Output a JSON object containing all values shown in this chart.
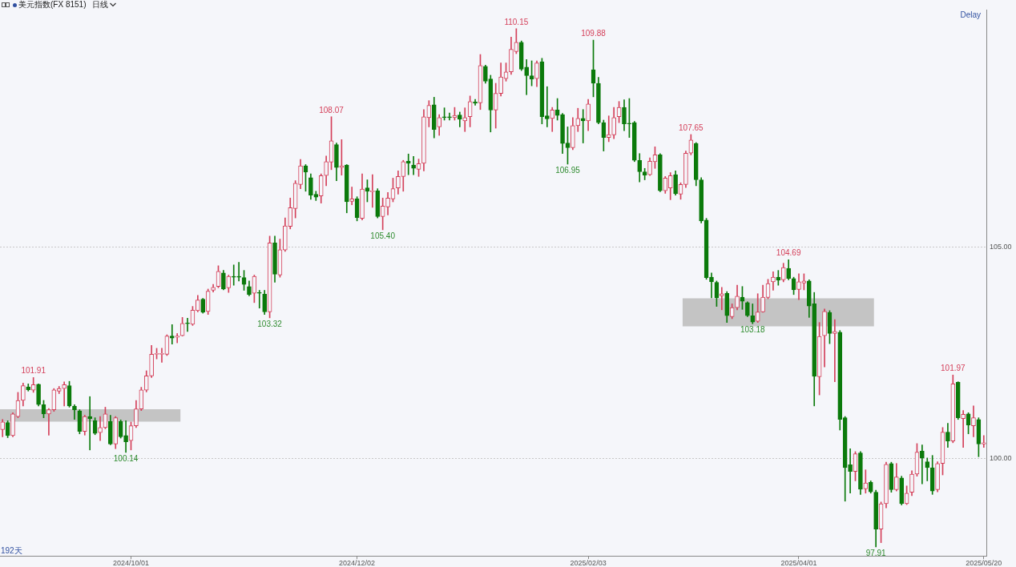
{
  "chart_data": {
    "type": "candlestick",
    "title": "美元指数(FX 8151)",
    "subtitle": "日线",
    "categories": [
      null,
      null,
      null,
      null,
      null,
      null,
      null,
      null,
      null,
      null,
      null,
      null,
      null,
      null,
      null,
      null,
      null,
      null,
      null,
      null,
      null,
      null,
      null,
      null,
      null,
      "2024/10/01",
      null,
      null,
      null,
      null,
      null,
      null,
      null,
      null,
      null,
      null,
      null,
      null,
      null,
      null,
      null,
      null,
      null,
      null,
      null,
      null,
      null,
      null,
      null,
      null,
      null,
      null,
      null,
      null,
      null,
      null,
      null,
      null,
      null,
      null,
      null,
      null,
      null,
      null,
      null,
      null,
      null,
      null,
      null,
      "2024/12/02",
      null,
      null,
      null,
      null,
      null,
      null,
      null,
      null,
      null,
      null,
      null,
      null,
      null,
      null,
      null,
      null,
      null,
      null,
      null,
      null,
      null,
      null,
      null,
      null,
      null,
      null,
      null,
      null,
      null,
      null,
      null,
      null,
      null,
      null,
      null,
      null,
      null,
      null,
      null,
      null,
      null,
      null,
      null,
      null,
      "2025/02/03",
      null,
      null,
      null,
      null,
      null,
      null,
      null,
      null,
      null,
      null,
      null,
      null,
      null,
      null,
      null,
      null,
      null,
      null,
      null,
      null,
      null,
      null,
      null,
      null,
      null,
      null,
      null,
      null,
      null,
      null,
      null,
      null,
      null,
      null,
      null,
      null,
      null,
      null,
      null,
      null,
      "2025/04/01",
      null,
      null,
      null,
      null,
      null,
      null,
      null,
      null,
      null,
      null,
      null,
      null,
      null,
      null,
      null,
      null,
      null,
      null,
      null,
      null,
      null,
      null,
      null,
      null,
      null,
      null,
      null,
      null,
      null,
      null,
      null,
      null,
      null,
      null,
      null,
      "2025/05/20"
    ],
    "ohlc": [
      [
        100.68,
        100.92,
        100.51,
        100.86
      ],
      [
        100.85,
        100.89,
        100.49,
        100.54
      ],
      [
        100.54,
        101.08,
        100.51,
        101.05
      ],
      [
        100.99,
        101.56,
        100.96,
        101.37
      ],
      [
        101.37,
        101.78,
        101.24,
        101.72
      ],
      [
        101.69,
        101.76,
        101.59,
        101.62
      ],
      [
        101.61,
        101.91,
        101.56,
        101.74
      ],
      [
        101.75,
        101.76,
        101.24,
        101.27
      ],
      [
        101.27,
        101.37,
        100.96,
        101.05
      ],
      [
        101.05,
        101.18,
        100.55,
        101.15
      ],
      [
        101.15,
        101.65,
        101.11,
        101.62
      ],
      [
        101.59,
        101.7,
        101.53,
        101.65
      ],
      [
        101.65,
        101.81,
        101.24,
        101.74
      ],
      [
        101.72,
        101.82,
        101.21,
        101.24
      ],
      [
        101.23,
        101.27,
        100.92,
        101.15
      ],
      [
        101.12,
        101.15,
        100.58,
        100.64
      ],
      [
        100.64,
        101.02,
        100.55,
        100.99
      ],
      [
        100.99,
        101.46,
        100.2,
        100.94
      ],
      [
        100.89,
        100.96,
        100.56,
        100.59
      ],
      [
        100.61,
        100.99,
        100.42,
        100.73
      ],
      [
        100.73,
        101.21,
        100.7,
        101.05
      ],
      [
        100.87,
        101.02,
        100.32,
        100.34
      ],
      [
        100.34,
        100.99,
        100.23,
        100.96
      ],
      [
        100.87,
        100.91,
        100.48,
        100.51
      ],
      [
        100.54,
        100.89,
        100.14,
        100.39
      ],
      [
        100.42,
        100.86,
        100.2,
        100.77
      ],
      [
        100.77,
        101.37,
        100.73,
        101.17
      ],
      [
        101.17,
        101.68,
        101.13,
        101.62
      ],
      [
        101.61,
        102.07,
        101.57,
        101.95
      ],
      [
        101.95,
        102.67,
        101.91,
        102.46
      ],
      [
        102.46,
        102.6,
        102.35,
        102.47
      ],
      [
        102.46,
        102.6,
        102.27,
        102.47
      ],
      [
        102.46,
        102.92,
        102.43,
        102.89
      ],
      [
        102.89,
        103.16,
        102.7,
        102.84
      ],
      [
        102.86,
        102.95,
        102.73,
        102.89
      ],
      [
        102.9,
        103.33,
        102.89,
        103.19
      ],
      [
        103.19,
        103.31,
        103.0,
        103.18
      ],
      [
        103.17,
        103.59,
        103.14,
        103.5
      ],
      [
        103.49,
        103.85,
        103.46,
        103.74
      ],
      [
        103.76,
        103.78,
        103.43,
        103.45
      ],
      [
        103.47,
        104.0,
        103.4,
        103.95
      ],
      [
        103.97,
        104.11,
        103.93,
        104.04
      ],
      [
        104.06,
        104.55,
        104.03,
        104.42
      ],
      [
        104.38,
        104.44,
        103.98,
        104.0
      ],
      [
        104.03,
        104.33,
        103.92,
        104.3
      ],
      [
        104.3,
        104.57,
        104.09,
        104.28
      ],
      [
        104.29,
        104.63,
        104.19,
        104.28
      ],
      [
        104.27,
        104.44,
        103.97,
        104.11
      ],
      [
        104.06,
        104.19,
        103.84,
        103.87
      ],
      [
        103.9,
        104.33,
        103.68,
        104.3
      ],
      [
        103.91,
        103.97,
        103.55,
        103.9
      ],
      [
        103.88,
        103.97,
        103.4,
        103.46
      ],
      [
        103.46,
        105.25,
        103.32,
        105.09
      ],
      [
        105.09,
        105.25,
        104.16,
        104.35
      ],
      [
        104.33,
        105.18,
        104.28,
        104.93
      ],
      [
        104.92,
        105.68,
        104.89,
        105.49
      ],
      [
        105.48,
        106.15,
        105.42,
        105.92
      ],
      [
        105.9,
        106.56,
        105.68,
        106.5
      ],
      [
        106.47,
        107.06,
        106.37,
        106.91
      ],
      [
        106.91,
        106.94,
        106.31,
        106.76
      ],
      [
        106.63,
        106.72,
        106.12,
        106.22
      ],
      [
        106.24,
        106.31,
        106.09,
        106.17
      ],
      [
        106.2,
        106.72,
        106.03,
        106.68
      ],
      [
        106.68,
        107.14,
        106.44,
        107.01
      ],
      [
        107.0,
        108.07,
        106.82,
        107.5
      ],
      [
        107.41,
        107.45,
        106.56,
        106.87
      ],
      [
        106.87,
        107.53,
        106.69,
        106.91
      ],
      [
        106.93,
        106.94,
        105.8,
        106.06
      ],
      [
        106.07,
        106.41,
        105.99,
        106.13
      ],
      [
        106.13,
        106.18,
        105.61,
        105.69
      ],
      [
        105.67,
        106.72,
        105.63,
        106.36
      ],
      [
        106.39,
        106.58,
        106.06,
        106.31
      ],
      [
        106.3,
        106.7,
        105.93,
        106.31
      ],
      [
        106.32,
        106.37,
        105.68,
        105.71
      ],
      [
        105.71,
        106.15,
        105.4,
        105.96
      ],
      [
        105.94,
        106.28,
        105.75,
        106.15
      ],
      [
        106.13,
        106.62,
        106.06,
        106.37
      ],
      [
        106.39,
        106.79,
        106.24,
        106.66
      ],
      [
        106.66,
        107.04,
        106.31,
        107.01
      ],
      [
        107.02,
        107.19,
        106.7,
        106.97
      ],
      [
        106.93,
        107.13,
        106.7,
        106.85
      ],
      [
        106.83,
        107.07,
        106.66,
        106.96
      ],
      [
        106.97,
        108.24,
        106.79,
        108.07
      ],
      [
        108.05,
        108.45,
        107.83,
        108.34
      ],
      [
        108.35,
        108.53,
        107.57,
        107.77
      ],
      [
        107.83,
        108.12,
        107.63,
        108.05
      ],
      [
        108.06,
        108.28,
        107.99,
        108.05
      ],
      [
        108.07,
        108.16,
        107.99,
        108.05
      ],
      [
        108.05,
        108.29,
        107.99,
        108.1
      ],
      [
        108.11,
        108.18,
        107.83,
        108.01
      ],
      [
        107.97,
        108.28,
        107.72,
        108.05
      ],
      [
        108.07,
        108.56,
        107.83,
        108.43
      ],
      [
        108.42,
        108.48,
        108.34,
        108.39
      ],
      [
        108.4,
        109.54,
        108.24,
        109.28
      ],
      [
        109.26,
        109.29,
        108.86,
        108.91
      ],
      [
        108.96,
        109.05,
        107.71,
        108.23
      ],
      [
        108.23,
        108.86,
        107.8,
        108.62
      ],
      [
        108.62,
        109.34,
        108.56,
        109.01
      ],
      [
        108.97,
        109.34,
        108.91,
        109.13
      ],
      [
        109.13,
        109.95,
        109.07,
        109.66
      ],
      [
        109.61,
        110.15,
        109.56,
        109.83
      ],
      [
        109.83,
        109.86,
        109.16,
        109.19
      ],
      [
        109.24,
        109.42,
        108.59,
        109.04
      ],
      [
        109.04,
        109.39,
        108.8,
        108.96
      ],
      [
        108.97,
        109.39,
        108.78,
        109.34
      ],
      [
        109.37,
        109.45,
        107.9,
        108.07
      ],
      [
        108.09,
        108.78,
        107.83,
        108.02
      ],
      [
        108.03,
        108.29,
        107.72,
        108.23
      ],
      [
        108.23,
        108.5,
        107.99,
        108.1
      ],
      [
        108.12,
        108.15,
        107.2,
        107.44
      ],
      [
        107.45,
        107.83,
        106.95,
        107.34
      ],
      [
        107.34,
        108.05,
        107.29,
        107.86
      ],
      [
        107.86,
        108.27,
        107.72,
        108.03
      ],
      [
        108.03,
        108.24,
        107.45,
        107.97
      ],
      [
        107.97,
        108.48,
        107.74,
        108.37
      ],
      [
        109.18,
        109.88,
        108.54,
        108.86
      ],
      [
        108.86,
        109.0,
        107.9,
        107.93
      ],
      [
        107.93,
        107.99,
        107.26,
        107.58
      ],
      [
        107.58,
        108.09,
        107.48,
        107.65
      ],
      [
        107.64,
        108.29,
        107.55,
        108.05
      ],
      [
        108.07,
        108.43,
        107.93,
        108.29
      ],
      [
        108.29,
        108.47,
        107.74,
        107.9
      ],
      [
        107.91,
        108.5,
        107.58,
        107.9
      ],
      [
        107.93,
        107.96,
        107.01,
        107.04
      ],
      [
        107.04,
        107.2,
        106.53,
        106.77
      ],
      [
        106.77,
        106.85,
        106.58,
        106.69
      ],
      [
        106.7,
        107.1,
        106.68,
        107.02
      ],
      [
        107.01,
        107.36,
        106.85,
        107.17
      ],
      [
        107.17,
        107.2,
        106.3,
        106.32
      ],
      [
        106.32,
        106.66,
        106.26,
        106.62
      ],
      [
        106.39,
        106.75,
        106.11,
        106.68
      ],
      [
        106.7,
        106.79,
        106.22,
        106.25
      ],
      [
        106.24,
        106.51,
        106.12,
        106.47
      ],
      [
        106.47,
        107.26,
        106.4,
        107.21
      ],
      [
        107.21,
        107.65,
        107.17,
        107.52
      ],
      [
        107.44,
        107.46,
        106.44,
        106.58
      ],
      [
        106.58,
        106.63,
        105.56,
        105.61
      ],
      [
        105.63,
        105.67,
        104.23,
        104.27
      ],
      [
        104.28,
        104.38,
        103.79,
        104.17
      ],
      [
        104.16,
        104.19,
        103.59,
        103.79
      ],
      [
        103.84,
        104.04,
        103.51,
        103.89
      ],
      [
        103.9,
        103.94,
        103.21,
        103.37
      ],
      [
        103.35,
        103.65,
        103.3,
        103.56
      ],
      [
        103.56,
        104.09,
        103.51,
        103.83
      ],
      [
        103.81,
        104.06,
        103.52,
        103.71
      ],
      [
        103.68,
        103.7,
        103.35,
        103.37
      ],
      [
        103.37,
        103.65,
        103.18,
        103.22
      ],
      [
        103.24,
        103.89,
        103.21,
        103.46
      ],
      [
        103.46,
        104.09,
        103.45,
        103.81
      ],
      [
        103.8,
        104.23,
        103.77,
        104.13
      ],
      [
        104.17,
        104.41,
        103.97,
        104.28
      ],
      [
        104.28,
        104.44,
        104.09,
        104.21
      ],
      [
        104.22,
        104.61,
        104.17,
        104.51
      ],
      [
        104.49,
        104.69,
        104.22,
        104.25
      ],
      [
        104.25,
        104.28,
        103.87,
        103.98
      ],
      [
        103.99,
        104.36,
        103.75,
        104.17
      ],
      [
        104.14,
        104.36,
        103.98,
        104.19
      ],
      [
        104.19,
        104.22,
        103.33,
        103.6
      ],
      [
        103.65,
        103.92,
        101.24,
        101.94
      ],
      [
        101.93,
        103.21,
        101.5,
        102.88
      ],
      [
        102.9,
        103.53,
        102.16,
        103.47
      ],
      [
        103.45,
        103.49,
        102.71,
        102.95
      ],
      [
        102.95,
        103.28,
        101.81,
        103.0
      ],
      [
        102.98,
        103.02,
        100.67,
        100.92
      ],
      [
        100.96,
        100.99,
        98.99,
        99.78
      ],
      [
        99.85,
        100.23,
        99.18,
        99.69
      ],
      [
        99.69,
        100.16,
        99.47,
        100.11
      ],
      [
        100.13,
        100.16,
        99.15,
        99.27
      ],
      [
        99.28,
        99.73,
        99.18,
        99.42
      ],
      [
        99.44,
        99.47,
        99.18,
        99.21
      ],
      [
        99.2,
        99.25,
        97.91,
        98.33
      ],
      [
        98.33,
        98.97,
        98.01,
        98.93
      ],
      [
        98.93,
        99.91,
        98.83,
        99.86
      ],
      [
        99.88,
        99.91,
        99.2,
        99.26
      ],
      [
        99.26,
        99.88,
        99.23,
        99.56
      ],
      [
        99.54,
        99.58,
        98.9,
        98.93
      ],
      [
        98.93,
        99.35,
        98.91,
        99.18
      ],
      [
        99.2,
        99.71,
        99.12,
        99.63
      ],
      [
        99.63,
        100.35,
        99.58,
        100.15
      ],
      [
        100.17,
        100.32,
        99.4,
        100.01
      ],
      [
        99.92,
        100.01,
        99.47,
        99.78
      ],
      [
        99.78,
        100.07,
        99.15,
        99.23
      ],
      [
        99.26,
        99.92,
        99.21,
        99.88
      ],
      [
        99.88,
        100.73,
        99.61,
        100.62
      ],
      [
        100.62,
        100.83,
        100.26,
        100.41
      ],
      [
        100.41,
        101.97,
        100.37,
        101.76
      ],
      [
        101.8,
        101.81,
        100.92,
        100.96
      ],
      [
        100.94,
        101.13,
        100.26,
        101.04
      ],
      [
        101.05,
        101.08,
        100.58,
        100.79
      ],
      [
        100.77,
        101.24,
        100.51,
        100.96
      ],
      [
        100.92,
        100.96,
        100.04,
        100.34
      ],
      [
        100.34,
        100.54,
        100.26,
        100.37
      ]
    ],
    "ylim": [
      97.7,
      110.6
    ],
    "yticks": [
      {
        "value": 100,
        "label": "100.00"
      },
      {
        "value": 105,
        "label": "105.00"
      }
    ],
    "grid": "y",
    "bands": [
      {
        "axis": "y",
        "from": 100.87,
        "to": 101.16,
        "color": "#c4c4c4"
      },
      {
        "axis": "y",
        "from": 103.12,
        "to": 103.78,
        "color": "#c4c4c4"
      }
    ],
    "annotations": [
      "Delay",
      "192天",
      {
        "text": "101.91",
        "y": 101.91
      },
      {
        "text": "100.14",
        "y": 100.14
      },
      {
        "text": "103.32",
        "y": 103.32
      },
      {
        "text": "108.07",
        "y": 108.07
      },
      {
        "text": "105.40",
        "y": 105.4
      },
      {
        "text": "110.15",
        "y": 110.15
      },
      {
        "text": "106.95",
        "y": 106.95
      },
      {
        "text": "109.88",
        "y": 109.88
      },
      {
        "text": "107.65",
        "y": 107.65
      },
      {
        "text": "104.69",
        "y": 104.69
      },
      {
        "text": "103.18",
        "y": 103.18
      },
      {
        "text": "101.97",
        "y": 101.97
      },
      {
        "text": "97.91",
        "y": 97.91
      }
    ]
  }
}
